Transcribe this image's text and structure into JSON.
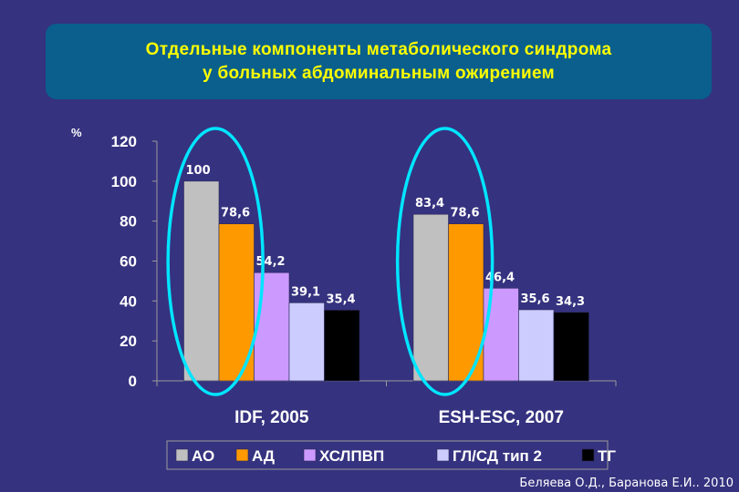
{
  "title": {
    "line1": "Отдельные компоненты метаболического синдрома",
    "line2": "у больных абдоминальным ожирением"
  },
  "credit": "Беляева О.Д., Баранова Е.И.. 2010",
  "colors": {
    "background": "#35327f",
    "title_box": "#0a5f8c",
    "title_text": "#ffff00",
    "highlight_ellipse": "#00e5ff"
  },
  "chart_data": {
    "type": "bar",
    "ylabel": "%",
    "ylim": [
      0,
      120
    ],
    "yticks": [
      0,
      20,
      40,
      60,
      80,
      100,
      120
    ],
    "categories": [
      "IDF, 2005",
      "ESH-ESC, 2007"
    ],
    "series": [
      {
        "name": "АО",
        "values": [
          100,
          83.4
        ],
        "labels": [
          "100",
          "83,4"
        ],
        "color": "#c0c0c0"
      },
      {
        "name": "АД",
        "values": [
          78.6,
          78.6
        ],
        "labels": [
          "78,6",
          "78,6"
        ],
        "color": "#ff9900"
      },
      {
        "name": "ХСЛПВП",
        "values": [
          54.2,
          46.4
        ],
        "labels": [
          "54,2",
          "46,4"
        ],
        "color": "#cc99ff"
      },
      {
        "name": "ГЛ/СД тип 2",
        "values": [
          39.1,
          35.6
        ],
        "labels": [
          "39,1",
          "35,6"
        ],
        "color": "#ccccff"
      },
      {
        "name": "ТГ",
        "values": [
          35.4,
          34.3
        ],
        "labels": [
          "35,4",
          "34,3"
        ],
        "color": "#000000"
      }
    ],
    "grid": false,
    "legend_position": "bottom"
  }
}
